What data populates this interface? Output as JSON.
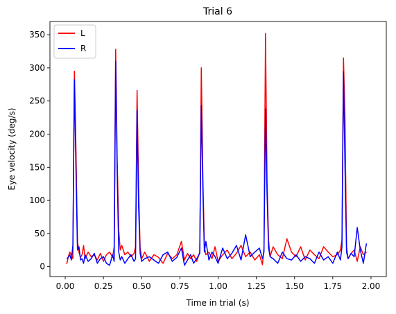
{
  "chart_data": {
    "type": "line",
    "title": "Trial 6",
    "xlabel": "Time in trial (s)",
    "ylabel": "Eye velocity (deg/s)",
    "xlim": [
      -0.1,
      2.1
    ],
    "ylim": [
      -15,
      370
    ],
    "xticks": [
      0.0,
      0.25,
      0.5,
      0.75,
      1.0,
      1.25,
      1.5,
      1.75,
      2.0
    ],
    "xtick_labels": [
      "0.00",
      "0.25",
      "0.50",
      "0.75",
      "1.00",
      "1.25",
      "1.50",
      "1.75",
      "2.00"
    ],
    "yticks": [
      0,
      50,
      100,
      150,
      200,
      250,
      300,
      350
    ],
    "ytick_labels": [
      "0",
      "50",
      "100",
      "150",
      "200",
      "250",
      "300",
      "350"
    ],
    "grid": false,
    "legend_position": "upper-left",
    "series": [
      {
        "name": "L",
        "color": "#ff0000",
        "x": [
          0.01,
          0.02,
          0.03,
          0.04,
          0.05,
          0.06,
          0.07,
          0.08,
          0.09,
          0.1,
          0.11,
          0.12,
          0.13,
          0.15,
          0.17,
          0.19,
          0.21,
          0.23,
          0.25,
          0.27,
          0.29,
          0.31,
          0.32,
          0.33,
          0.34,
          0.35,
          0.36,
          0.37,
          0.39,
          0.41,
          0.43,
          0.45,
          0.46,
          0.47,
          0.48,
          0.49,
          0.5,
          0.52,
          0.55,
          0.58,
          0.61,
          0.64,
          0.67,
          0.7,
          0.73,
          0.76,
          0.78,
          0.8,
          0.82,
          0.84,
          0.86,
          0.88,
          0.89,
          0.9,
          0.91,
          0.92,
          0.94,
          0.96,
          0.98,
          1.0,
          1.03,
          1.06,
          1.09,
          1.12,
          1.15,
          1.18,
          1.21,
          1.24,
          1.27,
          1.29,
          1.3,
          1.31,
          1.32,
          1.33,
          1.34,
          1.36,
          1.39,
          1.42,
          1.45,
          1.48,
          1.51,
          1.54,
          1.57,
          1.6,
          1.63,
          1.66,
          1.69,
          1.72,
          1.75,
          1.78,
          1.8,
          1.81,
          1.82,
          1.83,
          1.84,
          1.85,
          1.87,
          1.89,
          1.91,
          1.93,
          1.95,
          1.97
        ],
        "y": [
          4,
          15,
          22,
          18,
          12,
          295,
          180,
          38,
          22,
          14,
          18,
          32,
          12,
          22,
          15,
          18,
          10,
          20,
          8,
          18,
          22,
          14,
          30,
          328,
          160,
          55,
          25,
          32,
          18,
          22,
          15,
          20,
          30,
          266,
          120,
          28,
          12,
          22,
          8,
          18,
          14,
          5,
          20,
          12,
          18,
          38,
          10,
          20,
          12,
          18,
          8,
          22,
          300,
          140,
          30,
          18,
          22,
          12,
          30,
          8,
          18,
          25,
          12,
          20,
          32,
          15,
          22,
          10,
          18,
          3,
          28,
          352,
          130,
          40,
          15,
          30,
          18,
          12,
          42,
          22,
          15,
          30,
          10,
          25,
          18,
          12,
          30,
          22,
          15,
          18,
          25,
          40,
          315,
          220,
          30,
          12,
          20,
          25,
          8,
          30,
          18,
          22
        ]
      },
      {
        "name": "R",
        "color": "#0000ff",
        "x": [
          0.01,
          0.02,
          0.03,
          0.04,
          0.05,
          0.06,
          0.07,
          0.08,
          0.09,
          0.1,
          0.11,
          0.12,
          0.13,
          0.15,
          0.17,
          0.19,
          0.21,
          0.23,
          0.25,
          0.27,
          0.29,
          0.31,
          0.32,
          0.33,
          0.34,
          0.35,
          0.36,
          0.37,
          0.39,
          0.41,
          0.43,
          0.45,
          0.46,
          0.47,
          0.48,
          0.49,
          0.5,
          0.52,
          0.55,
          0.58,
          0.61,
          0.64,
          0.67,
          0.7,
          0.73,
          0.76,
          0.78,
          0.8,
          0.82,
          0.84,
          0.86,
          0.88,
          0.89,
          0.9,
          0.91,
          0.92,
          0.94,
          0.96,
          0.98,
          1.0,
          1.03,
          1.06,
          1.09,
          1.12,
          1.15,
          1.18,
          1.21,
          1.24,
          1.27,
          1.29,
          1.3,
          1.31,
          1.32,
          1.33,
          1.34,
          1.36,
          1.39,
          1.42,
          1.45,
          1.48,
          1.51,
          1.54,
          1.57,
          1.6,
          1.63,
          1.66,
          1.69,
          1.72,
          1.75,
          1.78,
          1.8,
          1.81,
          1.82,
          1.83,
          1.84,
          1.85,
          1.87,
          1.89,
          1.91,
          1.93,
          1.95,
          1.97
        ],
        "y": [
          12,
          14,
          18,
          10,
          32,
          282,
          150,
          25,
          30,
          10,
          12,
          5,
          18,
          8,
          12,
          20,
          5,
          12,
          15,
          5,
          2,
          18,
          8,
          310,
          140,
          22,
          10,
          15,
          5,
          12,
          18,
          8,
          12,
          236,
          90,
          20,
          8,
          12,
          15,
          10,
          5,
          18,
          22,
          8,
          14,
          28,
          2,
          10,
          18,
          5,
          12,
          20,
          243,
          120,
          22,
          38,
          10,
          22,
          15,
          5,
          28,
          12,
          20,
          32,
          10,
          48,
          15,
          22,
          28,
          12,
          22,
          238,
          110,
          28,
          15,
          12,
          5,
          22,
          12,
          10,
          18,
          8,
          15,
          12,
          5,
          22,
          10,
          15,
          5,
          22,
          10,
          30,
          294,
          150,
          22,
          12,
          20,
          15,
          59,
          25,
          5,
          35
        ]
      }
    ]
  }
}
